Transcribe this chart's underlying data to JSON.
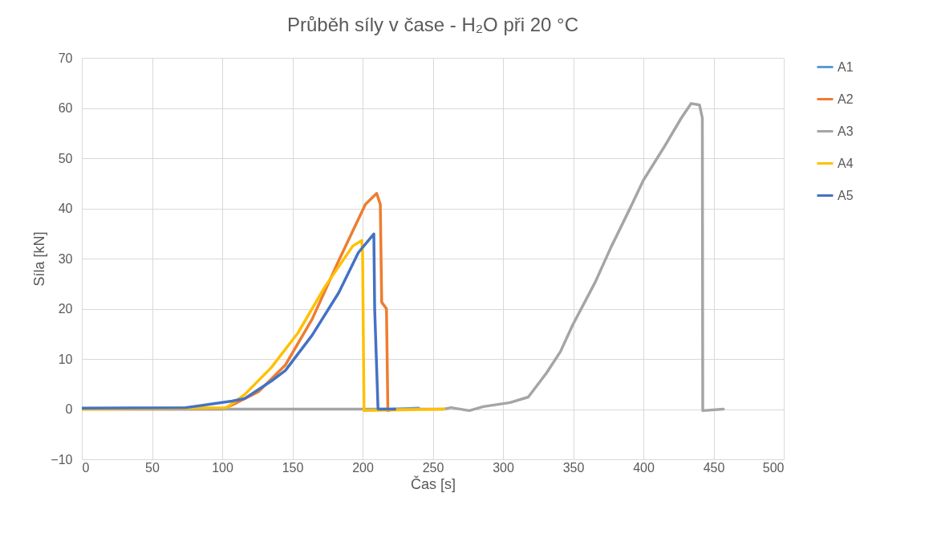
{
  "chart_data": {
    "type": "line",
    "title": "Průběh síly v čase - H₂O při 20 °C",
    "xlabel": "Čas [s]",
    "ylabel": "Síla [kN]",
    "xlim": [
      0,
      500
    ],
    "xticks": [
      0,
      50,
      100,
      150,
      200,
      250,
      300,
      350,
      400,
      450,
      500
    ],
    "ylim": [
      -10,
      70
    ],
    "yticks": [
      -10,
      0,
      10,
      20,
      30,
      40,
      50,
      60,
      70
    ],
    "grid": true,
    "legend": "right",
    "marker": "none",
    "line_style": "solid",
    "series": [
      {
        "name": "A1",
        "color": "#5b9bd5",
        "x": [
          222,
          240
        ],
        "values": [
          0,
          0.2
        ]
      },
      {
        "name": "A2",
        "color": "#ed7d31",
        "x": [
          0,
          100,
          107,
          126,
          145,
          164,
          183,
          202,
          210,
          212.6,
          213.6,
          217,
          218,
          222
        ],
        "values": [
          0,
          0,
          0.8,
          3.5,
          8.8,
          17.9,
          29.6,
          40.8,
          43,
          40.8,
          21.3,
          20,
          -0.3,
          0
        ]
      },
      {
        "name": "A3",
        "color": "#a5a5a5",
        "x": [
          0,
          258,
          263,
          276,
          286,
          305,
          318,
          331,
          341,
          349.7,
          365.7,
          377,
          391,
          400,
          415.4,
          427,
          434,
          440,
          442,
          442.3,
          457
        ],
        "values": [
          0,
          0,
          0.3,
          -0.3,
          0.5,
          1.3,
          2.4,
          7.2,
          11.5,
          16.8,
          25.3,
          32.3,
          40.3,
          45.6,
          52.5,
          58,
          60.9,
          60.6,
          58,
          -0.3,
          0
        ]
      },
      {
        "name": "A4",
        "color": "#ffc000",
        "x": [
          0,
          103,
          116,
          135,
          154,
          173,
          193,
          199.4,
          200,
          201,
          258
        ],
        "values": [
          0,
          0.3,
          2.9,
          8.3,
          15.2,
          24.3,
          32.5,
          33.6,
          31.2,
          -0.3,
          0
        ]
      },
      {
        "name": "A5",
        "color": "#4472c4",
        "x": [
          0,
          74,
          107,
          116,
          135,
          145,
          164,
          183,
          197,
          208,
          208.6,
          211,
          223
        ],
        "values": [
          0.2,
          0.3,
          1.6,
          2.1,
          5.6,
          7.7,
          14.7,
          23.2,
          31.2,
          34.9,
          20,
          0,
          0
        ]
      }
    ]
  }
}
